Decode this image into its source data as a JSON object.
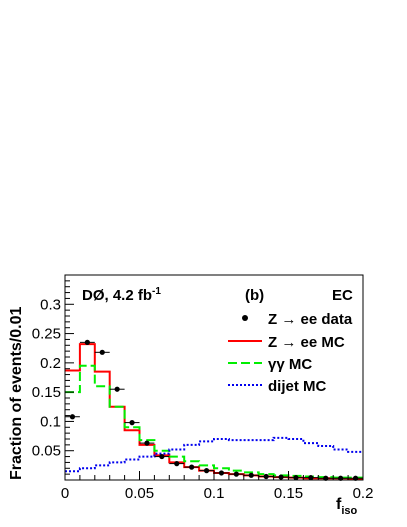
{
  "chart_data": {
    "type": "line",
    "title": "",
    "xlabel": "f",
    "xlabel_sub": "iso",
    "ylabel": "Fraction of events/0.01",
    "xlim": [
      0,
      0.2
    ],
    "ylim": [
      0,
      0.35
    ],
    "x_ticks": [
      0,
      0.05,
      0.1,
      0.15,
      0.2
    ],
    "x_tick_labels": [
      "0",
      "0.05",
      "0.1",
      "0.15",
      "0.2"
    ],
    "y_ticks": [
      0.05,
      0.1,
      0.15,
      0.2,
      0.25,
      0.3
    ],
    "y_tick_labels": [
      "0.05",
      "0.1",
      "0.15",
      "0.2",
      "0.25",
      "0.3"
    ],
    "bin_edges": [
      0,
      0.01,
      0.02,
      0.03,
      0.04,
      0.05,
      0.06,
      0.07,
      0.08,
      0.09,
      0.1,
      0.11,
      0.12,
      0.13,
      0.14,
      0.15,
      0.16,
      0.17,
      0.18,
      0.19,
      0.2
    ],
    "annotations": {
      "experiment": "DØ, 4.2 fb",
      "experiment_sup": "-1",
      "panel": "(b)",
      "region": "EC"
    },
    "legend_position": "top-right",
    "series": [
      {
        "name": "Z → ee data",
        "style": "points",
        "color": "#000000",
        "x": [
          0.005,
          0.015,
          0.025,
          0.035,
          0.045,
          0.055,
          0.065,
          0.075,
          0.085,
          0.095,
          0.105,
          0.115,
          0.125,
          0.135,
          0.145,
          0.155,
          0.165,
          0.175,
          0.185,
          0.195
        ],
        "values": [
          0.108,
          0.235,
          0.218,
          0.155,
          0.098,
          0.063,
          0.04,
          0.028,
          0.022,
          0.016,
          0.012,
          0.01,
          0.008,
          0.006,
          0.005,
          0.004,
          0.004,
          0.003,
          0.003,
          0.003
        ]
      },
      {
        "name": "Z → ee MC",
        "style": "step-solid",
        "color": "#ff0000",
        "values": [
          0.187,
          0.232,
          0.185,
          0.125,
          0.085,
          0.06,
          0.042,
          0.03,
          0.022,
          0.016,
          0.012,
          0.01,
          0.008,
          0.006,
          0.005,
          0.004,
          0.003,
          0.003,
          0.003,
          0.002
        ]
      },
      {
        "name": "γγ MC",
        "style": "step-dashed",
        "color": "#00ee00",
        "values": [
          0.15,
          0.195,
          0.16,
          0.125,
          0.09,
          0.068,
          0.05,
          0.04,
          0.032,
          0.025,
          0.02,
          0.016,
          0.013,
          0.01,
          0.008,
          0.007,
          0.006,
          0.005,
          0.004,
          0.004
        ]
      },
      {
        "name": "dijet MC",
        "style": "step-dotted",
        "color": "#0000ee",
        "values": [
          0.015,
          0.02,
          0.025,
          0.03,
          0.035,
          0.04,
          0.045,
          0.052,
          0.06,
          0.066,
          0.07,
          0.068,
          0.068,
          0.068,
          0.072,
          0.07,
          0.063,
          0.058,
          0.052,
          0.048
        ]
      }
    ]
  }
}
